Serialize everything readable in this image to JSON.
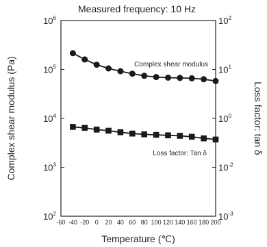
{
  "chart_data": {
    "type": "line",
    "title": "Measured frequency: 10 Hz",
    "xlabel": "Temperature (℃)",
    "ylabel": "Complex shear modulus (Pa)",
    "y2label": "Loss factor: tan δ",
    "x_ticks": [
      "-60",
      "-40",
      "-20",
      "0",
      "20",
      "40",
      "60",
      "80",
      "100",
      "120",
      "140",
      "160",
      "180",
      "200"
    ],
    "xlim": [
      -60,
      200
    ],
    "y_scale": "log",
    "ylim": [
      100,
      1000000
    ],
    "y_tick_labels": [
      {
        "base": "10",
        "exp": "2"
      },
      {
        "base": "10",
        "exp": "3"
      },
      {
        "base": "10",
        "exp": "4"
      },
      {
        "base": "10",
        "exp": "5"
      },
      {
        "base": "10",
        "exp": "6"
      }
    ],
    "y2_scale": "log",
    "y2lim": [
      0.001,
      100
    ],
    "y2_tick_labels": [
      {
        "base": "10",
        "exp": "-3"
      },
      {
        "base": "10",
        "exp": "-2"
      },
      {
        "base": "10",
        "exp": "0"
      },
      {
        "base": "10",
        "exp": "1"
      },
      {
        "base": "10",
        "exp": "2"
      }
    ],
    "grid": false,
    "series": [
      {
        "name": "Complex shear modulus",
        "axis": "left",
        "marker": "circle",
        "color": "#1a1a1a",
        "x": [
          -40,
          -20,
          0,
          20,
          40,
          60,
          80,
          100,
          120,
          140,
          160,
          180,
          200
        ],
        "y": [
          215000,
          160000,
          125000,
          105000,
          92000,
          82000,
          74000,
          70000,
          68000,
          67000,
          66000,
          63000,
          58000
        ]
      },
      {
        "name": "Loss factor: Tan δ",
        "axis": "left",
        "marker": "square",
        "color": "#1a1a1a",
        "x": [
          -40,
          -20,
          0,
          20,
          40,
          60,
          80,
          100,
          120,
          140,
          160,
          180,
          200
        ],
        "y": [
          6700,
          6400,
          5900,
          5600,
          5200,
          4900,
          4700,
          4600,
          4500,
          4400,
          4200,
          3900,
          3700
        ]
      }
    ]
  }
}
